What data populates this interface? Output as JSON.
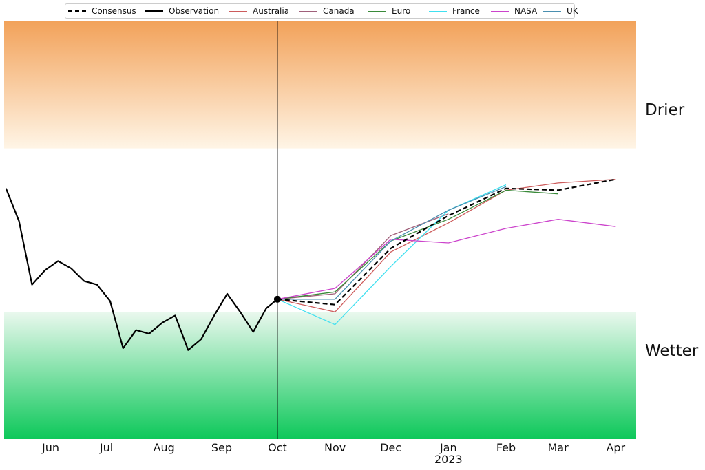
{
  "chart_data": {
    "type": "line",
    "title": "",
    "xlabel": "",
    "ylabel": "",
    "x_tick_labels": [
      {
        "label": "Jun",
        "x": "2022-06-01"
      },
      {
        "label": "Jul",
        "x": "2022-07-01"
      },
      {
        "label": "Aug",
        "x": "2022-08-01"
      },
      {
        "label": "Sep",
        "x": "2022-09-01"
      },
      {
        "label": "Oct",
        "x": "2022-10-01"
      },
      {
        "label": "Nov",
        "x": "2022-11-01"
      },
      {
        "label": "Dec",
        "x": "2022-12-01"
      },
      {
        "label": "Jan",
        "x": "2023-01-01",
        "year": "2023"
      },
      {
        "label": "Feb",
        "x": "2023-02-01"
      },
      {
        "label": "Mar",
        "x": "2023-03-01"
      },
      {
        "label": "Apr",
        "x": "2023-04-01"
      }
    ],
    "xlim": [
      "2022-05-07",
      "2023-04-12"
    ],
    "ylim": [
      -1.15,
      1.15
    ],
    "y_axis_visible": false,
    "forecast_start": "2022-10-01",
    "zones": [
      {
        "label": "Drier",
        "from": 0.45,
        "to": 1.15,
        "color_edge": "#f2a25a",
        "color_inner": "#fff5e6"
      },
      {
        "label": "",
        "from": -0.45,
        "to": 0.45,
        "color": "#ffffff"
      },
      {
        "label": "Wetter",
        "from": -1.15,
        "to": -0.45,
        "color_edge": "#0dc85a",
        "color_inner": "#eaf8ee"
      }
    ],
    "legend_position": "top",
    "series": [
      {
        "name": "Consensus",
        "color": "#000000",
        "style": "dashed",
        "x": [
          "2022-10-01",
          "2022-11-01",
          "2022-12-01",
          "2023-01-01",
          "2023-02-01",
          "2023-03-01",
          "2023-04-01"
        ],
        "y": [
          -0.38,
          -0.41,
          -0.1,
          0.08,
          0.23,
          0.22,
          0.28
        ]
      },
      {
        "name": "Observation",
        "color": "#000000",
        "style": "solid",
        "x": [
          "2022-05-08",
          "2022-05-15",
          "2022-05-22",
          "2022-05-29",
          "2022-06-05",
          "2022-06-12",
          "2022-06-19",
          "2022-06-26",
          "2022-07-03",
          "2022-07-10",
          "2022-07-17",
          "2022-07-24",
          "2022-07-31",
          "2022-08-07",
          "2022-08-14",
          "2022-08-21",
          "2022-08-28",
          "2022-09-04",
          "2022-09-11",
          "2022-09-18",
          "2022-09-25",
          "2022-10-01"
        ],
        "y": [
          0.23,
          0.05,
          -0.3,
          -0.22,
          -0.17,
          -0.21,
          -0.28,
          -0.3,
          -0.39,
          -0.65,
          -0.55,
          -0.57,
          -0.51,
          -0.47,
          -0.66,
          -0.6,
          -0.47,
          -0.35,
          -0.45,
          -0.56,
          -0.43,
          -0.38
        ]
      },
      {
        "name": "Australia",
        "color": "#cd5c5c",
        "style": "solid",
        "x": [
          "2022-10-01",
          "2022-11-01",
          "2022-12-01",
          "2023-01-01",
          "2023-02-01",
          "2023-03-01",
          "2023-04-01"
        ],
        "y": [
          -0.38,
          -0.45,
          -0.12,
          0.04,
          0.22,
          0.26,
          0.28
        ]
      },
      {
        "name": "Canada",
        "color": "#a0607a",
        "style": "solid",
        "x": [
          "2022-10-01",
          "2022-11-01",
          "2022-12-01",
          "2023-01-01"
        ],
        "y": [
          -0.38,
          -0.35,
          -0.03,
          0.09
        ]
      },
      {
        "name": "Euro",
        "color": "#3a8a3a",
        "style": "solid",
        "x": [
          "2022-10-01",
          "2022-11-01",
          "2022-12-01",
          "2023-01-01",
          "2023-02-01",
          "2023-03-01"
        ],
        "y": [
          -0.38,
          -0.34,
          -0.06,
          0.06,
          0.22,
          0.2
        ]
      },
      {
        "name": "France",
        "color": "#40e0f0",
        "style": "solid",
        "x": [
          "2022-10-01",
          "2022-11-01",
          "2022-12-01",
          "2023-01-01",
          "2023-02-01"
        ],
        "y": [
          -0.38,
          -0.52,
          -0.2,
          0.11,
          0.25
        ]
      },
      {
        "name": "NASA",
        "color": "#cc44cc",
        "style": "solid",
        "x": [
          "2022-10-01",
          "2022-11-01",
          "2022-12-01",
          "2023-01-01",
          "2023-02-01",
          "2023-03-01",
          "2023-04-01"
        ],
        "y": [
          -0.38,
          -0.32,
          -0.05,
          -0.07,
          0.01,
          0.06,
          0.02
        ]
      },
      {
        "name": "UK",
        "color": "#4a8fb0",
        "style": "solid",
        "x": [
          "2022-10-01",
          "2022-11-01",
          "2022-12-01",
          "2023-01-01",
          "2023-02-01"
        ],
        "y": [
          -0.38,
          -0.38,
          -0.06,
          0.11,
          0.24
        ]
      }
    ]
  }
}
